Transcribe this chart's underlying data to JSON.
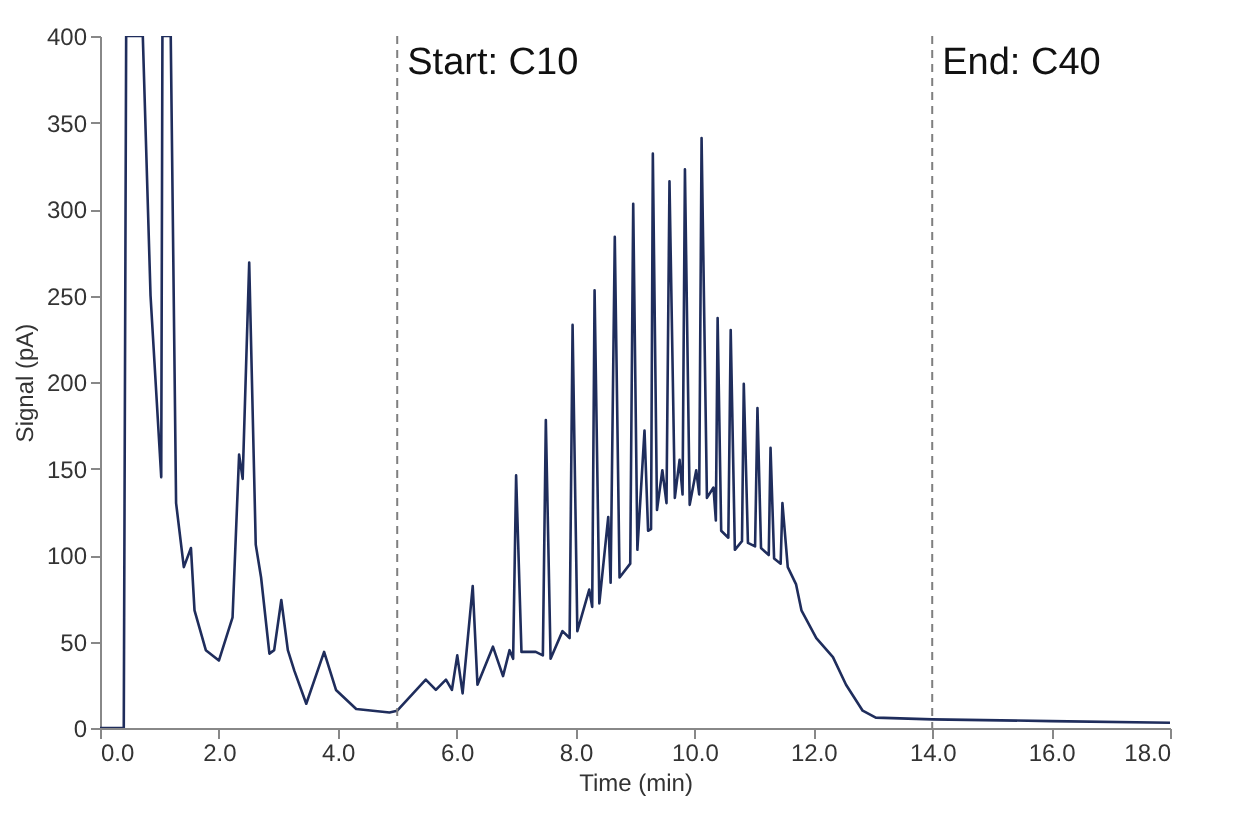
{
  "chart_data": {
    "type": "line",
    "xlabel": "Time (min)",
    "ylabel": "Signal (pA)",
    "xlim": [
      0,
      18
    ],
    "ylim": [
      0,
      400
    ],
    "xticks": [
      {
        "value": 0,
        "label": "0.0"
      },
      {
        "value": 2,
        "label": "2.0"
      },
      {
        "value": 4,
        "label": "4.0"
      },
      {
        "value": 6,
        "label": "6.0"
      },
      {
        "value": 8,
        "label": "8.0"
      },
      {
        "value": 10,
        "label": "10.0"
      },
      {
        "value": 12,
        "label": "12.0"
      },
      {
        "value": 14,
        "label": "14.0"
      },
      {
        "value": 16,
        "label": "16.0"
      },
      {
        "value": 18,
        "label": "18.0"
      }
    ],
    "yticks": [
      0,
      50,
      100,
      150,
      200,
      250,
      300,
      350,
      400
    ],
    "grid": false,
    "marker": "none",
    "line_style": "solid",
    "ref_lines": [
      {
        "axis": "x",
        "value": 5,
        "label": "Start: C10",
        "color": "#7f7f7f",
        "line_style": "dashed"
      },
      {
        "axis": "x",
        "value": 14,
        "label": "End: C40",
        "color": "#7f7f7f",
        "line_style": "dashed"
      }
    ],
    "series": [
      {
        "color": "#1f2d5c",
        "x": [
          0,
          0.4,
          0.44,
          0.72,
          0.85,
          1.03,
          1.05,
          1.19,
          1.28,
          1.41,
          1.53,
          1.59,
          1.78,
          2.0,
          2.23,
          2.34,
          2.4,
          2.51,
          2.62,
          2.71,
          2.85,
          2.93,
          3.05,
          3.16,
          3.27,
          3.47,
          3.77,
          3.97,
          4.31,
          4.87,
          5.0,
          5.48,
          5.65,
          5.82,
          5.92,
          6.01,
          6.1,
          6.27,
          6.35,
          6.61,
          6.78,
          6.89,
          6.95,
          7.0,
          7.09,
          7.33,
          7.45,
          7.5,
          7.58,
          7.78,
          7.9,
          7.95,
          8.03,
          8.23,
          8.28,
          8.32,
          8.4,
          8.55,
          8.59,
          8.66,
          8.74,
          8.92,
          8.97,
          9.04,
          9.16,
          9.22,
          9.27,
          9.3,
          9.37,
          9.46,
          9.53,
          9.58,
          9.67,
          9.75,
          9.8,
          9.84,
          9.92,
          10.03,
          10.08,
          10.12,
          10.21,
          10.32,
          10.36,
          10.39,
          10.45,
          10.57,
          10.61,
          10.68,
          10.8,
          10.83,
          10.9,
          11.02,
          11.06,
          11.12,
          11.25,
          11.28,
          11.34,
          11.45,
          11.48,
          11.57,
          11.71,
          11.8,
          12.05,
          12.33,
          12.55,
          12.83,
          13.05,
          14.0,
          16.0,
          18.0
        ],
        "values": [
          0,
          0,
          400,
          400,
          250,
          145,
          400,
          400,
          130,
          93,
          104,
          68,
          45,
          39,
          64,
          158,
          144,
          269,
          106,
          87,
          43,
          45,
          74,
          45,
          33,
          14,
          44,
          22,
          11,
          9,
          10,
          28,
          22,
          28,
          22,
          42,
          20,
          82,
          25,
          47,
          30,
          45,
          40,
          146,
          44,
          44,
          42,
          178,
          40,
          56,
          52,
          233,
          56,
          80,
          70,
          253,
          72,
          122,
          84,
          284,
          87,
          95,
          303,
          103,
          172,
          114,
          115,
          332,
          126,
          149,
          130,
          316,
          133,
          155,
          135,
          323,
          129,
          149,
          135,
          341,
          133,
          139,
          120,
          237,
          114,
          110,
          230,
          103,
          108,
          199,
          107,
          105,
          185,
          104,
          100,
          162,
          98,
          95,
          130,
          93,
          83,
          68,
          52,
          41,
          25,
          10,
          6,
          5,
          4,
          3
        ]
      }
    ]
  }
}
